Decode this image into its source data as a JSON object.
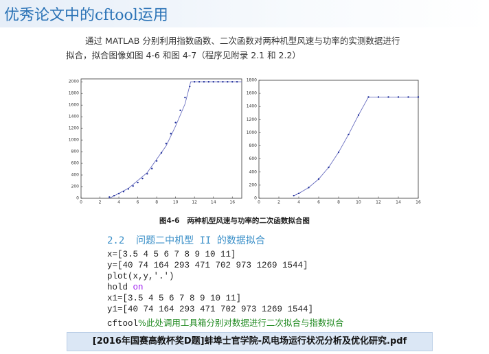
{
  "header": {
    "title": "优秀论文中的cftool运用"
  },
  "paragraph": [
    "通过 MATLAB 分别利用指数函数、二次函数对两种机型风速与功率的实测数据进行",
    "拟合，拟合图像如图 4-6 和图 4-7（程序见附录 2.1 和 2.2）"
  ],
  "charts": [
    {
      "type": "scatter",
      "points": {
        "color": "#1f2f9a",
        "x": [
          3,
          3.5,
          4,
          4.5,
          5,
          5.5,
          6,
          6.5,
          7,
          7.5,
          8,
          8.5,
          9,
          9.5,
          10,
          10.5,
          11,
          11.5,
          12,
          12.5,
          13,
          13.5,
          14,
          14.5,
          15,
          15.5,
          16,
          16.5
        ],
        "y": [
          20,
          45,
          80,
          115,
          160,
          210,
          270,
          340,
          420,
          510,
          640,
          780,
          940,
          1110,
          1300,
          1510,
          1730,
          1920,
          2000,
          2000,
          2000,
          2000,
          2000,
          2000,
          2000,
          2000,
          2000,
          2000
        ]
      },
      "fit": {
        "color": "#6a6fc0",
        "x": [
          3,
          5,
          7,
          9,
          10,
          11,
          11.6,
          17
        ],
        "y": [
          0,
          170,
          440,
          900,
          1240,
          1620,
          2000,
          2000
        ]
      },
      "xlim": [
        0,
        17
      ],
      "ylim": [
        0,
        2050
      ],
      "xticks": [
        0,
        2,
        4,
        6,
        8,
        10,
        12,
        14,
        16
      ],
      "yticks": [
        0,
        200,
        400,
        600,
        800,
        1000,
        1200,
        1400,
        1600,
        1800,
        2000
      ]
    },
    {
      "type": "scatter",
      "points": {
        "color": "#1f2f9a",
        "x": [
          3.5,
          4,
          5,
          6,
          7,
          8,
          9,
          10,
          11,
          12,
          13,
          14,
          15,
          16
        ],
        "y": [
          40,
          74,
          164,
          293,
          471,
          702,
          973,
          1269,
          1544,
          1544,
          1544,
          1544,
          1544,
          1544
        ]
      },
      "fit": {
        "color": "#6a6fc0",
        "x": [
          3.5,
          4,
          5,
          6,
          7,
          8,
          9,
          10,
          11,
          16
        ],
        "y": [
          40,
          74,
          164,
          293,
          471,
          702,
          973,
          1269,
          1544,
          1544
        ]
      },
      "xlim": [
        0,
        16
      ],
      "ylim": [
        0,
        1800
      ],
      "xticks": [
        0,
        2,
        4,
        6,
        8,
        10,
        12,
        14,
        16
      ],
      "yticks": [
        0,
        200,
        400,
        600,
        800,
        1000,
        1200,
        1400,
        1600,
        1800
      ]
    }
  ],
  "caption": "图4-6   两种机型风速与功率的二次函数拟合图",
  "section": "2.2  问题二中机型 II 的数据拟合",
  "code": [
    [
      "x=[3.5 4 5 6 7 8 9 10 11]"
    ],
    [
      "y=[40 74 164 293 471 702 973 1269 1544]"
    ],
    [
      "plot(x,y,'.')"
    ],
    [
      "hold ",
      "on"
    ],
    [
      "x1=[3.5 4 5 6 7 8 9 10 11]"
    ],
    [
      "y1=[40 74 164 293 471 702 973 1269 1544]"
    ],
    [
      "cftool",
      "%此处调用工具箱分别对数据进行二次拟合与指数拟合"
    ]
  ],
  "footer": "[2016年国赛高教杯奖D题]蚌埠士官学院-风电场运行状况分析及优化研究.pdf"
}
